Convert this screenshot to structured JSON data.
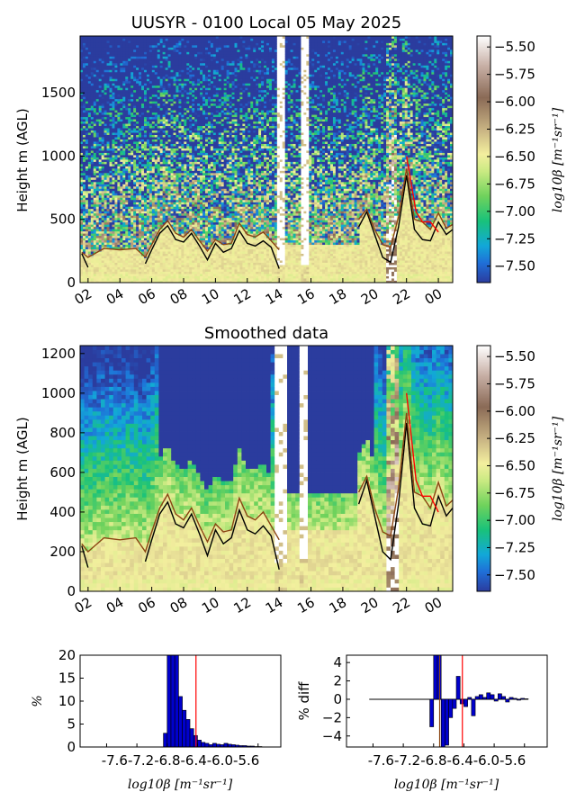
{
  "chart_data": [
    {
      "type": "heatmap",
      "title": "UUSYR - 0100 Local 05 May 2025",
      "ylabel": "Height m (AGL)",
      "xlabel": "",
      "xticks": [
        "02",
        "04",
        "06",
        "08",
        "10",
        "12",
        "14",
        "16",
        "18",
        "20",
        "22",
        "00"
      ],
      "yticks": [
        0,
        500,
        1000,
        1500
      ],
      "xlim_hours": [
        1.5,
        24.9
      ],
      "ylim": [
        0,
        1950
      ],
      "colorbar": {
        "label": "log10β [m⁻¹sr⁻¹]",
        "ticks": [
          "-5.50",
          "-5.75",
          "-6.00",
          "-6.25",
          "-6.50",
          "-6.75",
          "-7.00",
          "-7.25",
          "-7.50"
        ],
        "range": [
          -7.65,
          -5.4
        ]
      },
      "gaps_hours": [
        [
          13.8,
          14.4
        ],
        [
          15.4,
          15.9
        ]
      ],
      "series": [
        {
          "name": "",
          "color": "#000000",
          "x": [
            1.6,
            2.0,
            3.0,
            4.0,
            5.0,
            5.6,
            6.0,
            6.5,
            7.0,
            7.5,
            8.0,
            8.5,
            9.0,
            9.5,
            10.0,
            10.5,
            11.0,
            11.5,
            12.0,
            12.5,
            13.0,
            13.5,
            14.0,
            17.5,
            18.0,
            18.5,
            19.0,
            19.5,
            20.0,
            20.5,
            21.0,
            21.5,
            22.0,
            22.5,
            23.0,
            23.5,
            24.0,
            24.5,
            24.9
          ],
          "y": [
            230,
            120,
            null,
            null,
            null,
            150,
            260,
            390,
            450,
            340,
            320,
            390,
            290,
            180,
            310,
            240,
            270,
            410,
            310,
            290,
            330,
            280,
            110,
            null,
            null,
            null,
            440,
            560,
            380,
            200,
            160,
            440,
            850,
            420,
            340,
            330,
            480,
            380,
            420
          ]
        },
        {
          "name": "",
          "color": "#8B4513",
          "x": [
            1.6,
            2.0,
            3.0,
            4.0,
            5.0,
            5.6,
            6.0,
            6.5,
            7.0,
            7.5,
            8.0,
            8.5,
            9.0,
            9.5,
            10.0,
            10.5,
            11.0,
            11.5,
            12.0,
            12.5,
            13.0,
            13.5,
            14.0,
            17.5,
            18.0,
            18.5,
            19.0,
            19.5,
            20.0,
            20.5,
            21.0,
            21.5,
            22.0,
            22.5,
            23.0,
            23.5,
            24.0,
            24.5,
            24.9
          ],
          "y": [
            240,
            200,
            270,
            260,
            270,
            200,
            300,
            420,
            490,
            390,
            360,
            420,
            330,
            250,
            340,
            300,
            310,
            470,
            380,
            360,
            400,
            330,
            260,
            null,
            null,
            null,
            500,
            580,
            420,
            300,
            280,
            520,
            900,
            500,
            480,
            420,
            550,
            430,
            460
          ]
        },
        {
          "name": "",
          "color": "#ff0000",
          "x": [
            22.0,
            22.3,
            22.6,
            23.0,
            23.5,
            24.0
          ],
          "y": [
            1000,
            780,
            560,
            480,
            480,
            400
          ]
        }
      ]
    },
    {
      "type": "heatmap",
      "title": "Smoothed data",
      "ylabel": "Height m (AGL)",
      "xticks": [
        "02",
        "04",
        "06",
        "08",
        "10",
        "12",
        "14",
        "16",
        "18",
        "20",
        "22",
        "00"
      ],
      "yticks": [
        0,
        200,
        400,
        600,
        800,
        1000,
        1200
      ],
      "xlim_hours": [
        1.5,
        24.9
      ],
      "ylim": [
        0,
        1240
      ],
      "colorbar": {
        "label": "log10β [m⁻¹sr⁻¹]",
        "ticks": [
          "-5.50",
          "-5.75",
          "-6.00",
          "-6.25",
          "-6.50",
          "-6.75",
          "-7.00",
          "-7.25",
          "-7.50"
        ],
        "range": [
          -7.65,
          -5.4
        ]
      }
    },
    {
      "type": "bar",
      "ylabel": "%",
      "xlabel": "log10β [m⁻¹sr⁻¹]",
      "xtick_labels": [
        "-7.6",
        "-7.2",
        "-6.8",
        "-6.4",
        "-6.0",
        "-5.6"
      ],
      "xlim": [
        -7.95,
        -5.3
      ],
      "ylim": [
        0,
        20
      ],
      "yticks": [
        0,
        5,
        10,
        15,
        20
      ],
      "bin_width": 0.05,
      "bin_starts": [
        -6.85,
        -6.8,
        -6.75,
        -6.7,
        -6.65,
        -6.6,
        -6.55,
        -6.5,
        -6.45,
        -6.4,
        -6.35,
        -6.3,
        -6.25,
        -6.2,
        -6.15,
        -6.1,
        -6.05,
        -6.0,
        -5.95,
        -5.9,
        -5.85,
        -5.8,
        -5.75,
        -5.7,
        -5.65,
        -5.6
      ],
      "values": [
        3,
        22,
        30,
        20,
        11,
        8,
        6,
        4,
        2.5,
        1.5,
        1,
        0.8,
        0.5,
        0.8,
        0.6,
        0.5,
        0.8,
        0.6,
        0.5,
        0.4,
        0.3,
        0.3,
        0.2,
        0.2,
        0.1,
        0.1
      ],
      "threshold_line": -6.42,
      "threshold_color": "#ff0000"
    },
    {
      "type": "bar",
      "ylabel": "% diff",
      "xlabel": "log10β [m⁻¹sr⁻¹]",
      "xtick_labels": [
        "-7.6",
        "-7.2",
        "-6.8",
        "-6.4",
        "-6.0",
        "-5.6"
      ],
      "xlim": [
        -7.95,
        -5.3
      ],
      "ylim": [
        -5.2,
        4.8
      ],
      "yticks": [
        -4,
        -2,
        0,
        2,
        4
      ],
      "bin_width": 0.05,
      "bin_starts": [
        -6.85,
        -6.8,
        -6.75,
        -6.7,
        -6.65,
        -6.6,
        -6.55,
        -6.5,
        -6.45,
        -6.4,
        -6.35,
        -6.3,
        -6.25,
        -6.2,
        -6.15,
        -6.1,
        -6.05,
        -6.0,
        -5.95,
        -5.9,
        -5.85,
        -5.8,
        -5.75,
        -5.7,
        -5.65,
        -5.6
      ],
      "values": [
        -3,
        6,
        5,
        -6,
        -5,
        -2,
        -1,
        2.5,
        -0.5,
        -0.8,
        0.2,
        -1.8,
        0.3,
        0.5,
        0.2,
        0.7,
        0.5,
        -0.2,
        0.6,
        0.3,
        -0.3,
        0.2,
        0.1,
        -0.1,
        0.1,
        0.05
      ],
      "baseline_x": [
        -7.65,
        -5.55
      ],
      "vlines": [
        {
          "x": -6.72,
          "color": "#8B4513"
        },
        {
          "x": -6.42,
          "color": "#ff0000"
        }
      ]
    }
  ]
}
